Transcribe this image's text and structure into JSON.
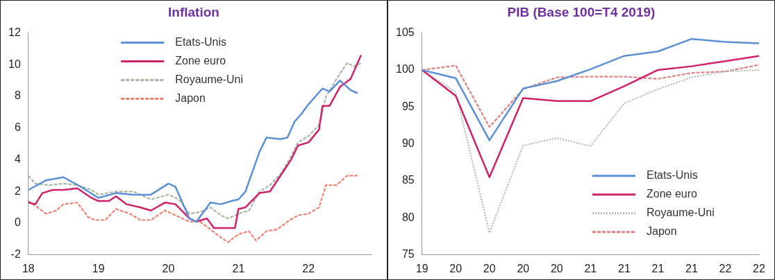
{
  "chart_data": [
    {
      "type": "line",
      "title": "Inflation",
      "xlim": [
        2018,
        2022.9
      ],
      "xticks": [
        {
          "value": 2018,
          "label": "18"
        },
        {
          "value": 2019,
          "label": "19"
        },
        {
          "value": 2020,
          "label": "20"
        },
        {
          "value": 2021,
          "label": "21"
        },
        {
          "value": 2022,
          "label": "22"
        }
      ],
      "ylim": [
        -2,
        12
      ],
      "yticks": [
        -2,
        0,
        2,
        4,
        6,
        8,
        10,
        12
      ],
      "grid": false,
      "legend": "top",
      "marker": "none",
      "series": [
        {
          "name": "Etats-Unis",
          "color": "#5b8fd6",
          "line_style": "solid",
          "x": [
            2018,
            2018.25,
            2018.5,
            2018.75,
            2019,
            2019.25,
            2019.5,
            2019.75,
            2020,
            2020.1,
            2020.3,
            2020.4,
            2020.6,
            2020.75,
            2020.9,
            2021,
            2021.1,
            2021.3,
            2021.4,
            2021.6,
            2021.7,
            2021.8,
            2021.9,
            2022,
            2022.2,
            2022.3,
            2022.45,
            2022.6,
            2022.7
          ],
          "values": [
            2.1,
            2.7,
            2.9,
            2.3,
            1.6,
            1.9,
            1.8,
            1.8,
            2.5,
            2.3,
            0.3,
            0.1,
            1.3,
            1.2,
            1.4,
            1.5,
            2,
            4.5,
            5.4,
            5.3,
            5.4,
            6.4,
            6.9,
            7.5,
            8.5,
            8.3,
            9,
            8.4,
            8.2
          ]
        },
        {
          "name": "Zone euro",
          "color": "#d0206a",
          "line_style": "solid",
          "x": [
            2018,
            2018.1,
            2018.2,
            2018.35,
            2018.5,
            2018.7,
            2018.9,
            2019,
            2019.15,
            2019.25,
            2019.4,
            2019.6,
            2019.75,
            2019.95,
            2020.1,
            2020.3,
            2020.4,
            2020.55,
            2020.65,
            2020.8,
            2020.95,
            2021,
            2021.1,
            2021.3,
            2021.45,
            2021.6,
            2021.75,
            2021.85,
            2022,
            2022.15,
            2022.2,
            2022.3,
            2022.45,
            2022.6,
            2022.75
          ],
          "values": [
            1.3,
            1.2,
            1.9,
            2.1,
            2.1,
            2.2,
            1.6,
            1.4,
            1.4,
            1.7,
            1.2,
            1,
            0.8,
            1.3,
            1.2,
            0.3,
            0.1,
            0.3,
            -0.3,
            -0.3,
            -0.3,
            0.9,
            1,
            1.9,
            2,
            3,
            4,
            4.9,
            5.1,
            5.9,
            7.4,
            7.4,
            8.6,
            9.1,
            10.6
          ]
        },
        {
          "name": "Royaume-Uni",
          "color": "#a8b8a0",
          "line_style": "dashed",
          "x": [
            2018,
            2018.1,
            2018.3,
            2018.5,
            2018.7,
            2018.9,
            2019,
            2019.25,
            2019.5,
            2019.75,
            2020,
            2020.15,
            2020.3,
            2020.45,
            2020.6,
            2020.75,
            2020.85,
            2021,
            2021.15,
            2021.3,
            2021.45,
            2021.6,
            2021.75,
            2021.85,
            2022,
            2022.15,
            2022.25,
            2022.4,
            2022.55,
            2022.65,
            2022.75
          ],
          "values": [
            3,
            2.5,
            2.4,
            2.5,
            2.4,
            2.1,
            1.8,
            2,
            2,
            1.5,
            1.8,
            1.5,
            0.6,
            0.7,
            1,
            0.5,
            0.3,
            0.6,
            0.8,
            2,
            2.4,
            3.1,
            4.2,
            5.1,
            5.5,
            6.2,
            8,
            9.1,
            10.1,
            9.9,
            10.1
          ]
        },
        {
          "name": "Japon",
          "color": "#f08070",
          "line_style": "dashed",
          "x": [
            2018,
            2018.1,
            2018.25,
            2018.4,
            2018.5,
            2018.7,
            2018.85,
            2018.95,
            2019.1,
            2019.25,
            2019.45,
            2019.6,
            2019.75,
            2019.95,
            2020.1,
            2020.3,
            2020.45,
            2020.6,
            2020.75,
            2020.85,
            2021,
            2021.15,
            2021.25,
            2021.4,
            2021.55,
            2021.7,
            2021.85,
            2022,
            2022.15,
            2022.25,
            2022.4,
            2022.55,
            2022.7
          ],
          "values": [
            1.4,
            1.1,
            0.6,
            0.8,
            1.2,
            1.3,
            0.4,
            0.2,
            0.2,
            0.9,
            0.6,
            0.2,
            0.2,
            0.8,
            0.5,
            0.1,
            0.1,
            -0.4,
            -0.9,
            -1.2,
            -0.7,
            -0.5,
            -1.1,
            -0.5,
            -0.4,
            0.1,
            0.5,
            0.6,
            1,
            2.4,
            2.4,
            3,
            3
          ]
        }
      ]
    },
    {
      "type": "line",
      "title": "PIB (Base 100=T4 2019)",
      "categories": [
        "19",
        "20",
        "20",
        "20",
        "20",
        "21",
        "21",
        "21",
        "21",
        "22",
        "22"
      ],
      "ylim": [
        75,
        105
      ],
      "yticks": [
        75,
        80,
        85,
        90,
        95,
        100,
        105
      ],
      "grid": false,
      "legend": "bottom right",
      "marker": "none",
      "series": [
        {
          "name": "Etats-Unis",
          "color": "#5b8fd6",
          "line_style": "solid",
          "values": [
            100,
            98.9,
            90.5,
            97.5,
            98.5,
            100.1,
            101.9,
            102.5,
            104.2,
            103.8,
            103.6
          ]
        },
        {
          "name": "Zone euro",
          "color": "#d0206a",
          "line_style": "solid",
          "values": [
            100,
            96.5,
            85.5,
            96.2,
            95.8,
            95.8,
            97.8,
            100,
            100.5,
            101.2,
            101.9
          ]
        },
        {
          "name": "Royaume-Uni",
          "color": "#b0bcb0",
          "line_style": "dotted",
          "values": [
            100,
            97,
            78,
            89.8,
            90.8,
            89.7,
            95.5,
            97.4,
            99,
            99.8,
            100
          ]
        },
        {
          "name": "Japon",
          "color": "#e08080",
          "line_style": "dashed",
          "values": [
            100,
            100.6,
            92.3,
            97.4,
            99,
            99.1,
            99.1,
            98.8,
            99.6,
            99.8,
            100.7
          ]
        }
      ]
    }
  ]
}
